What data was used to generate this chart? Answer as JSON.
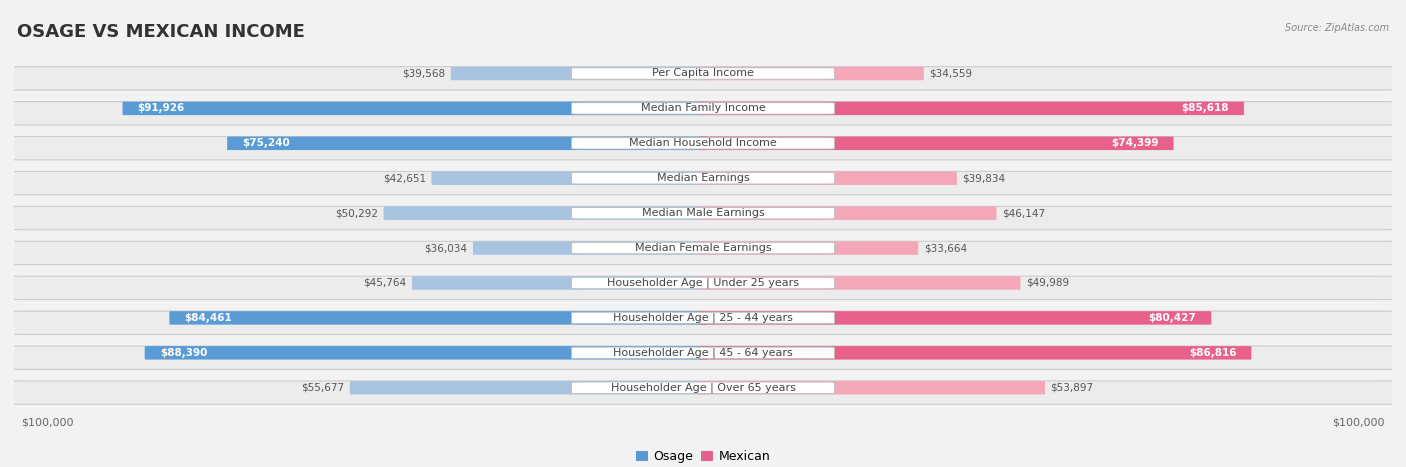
{
  "title": "OSAGE VS MEXICAN INCOME",
  "source": "Source: ZipAtlas.com",
  "categories": [
    "Per Capita Income",
    "Median Family Income",
    "Median Household Income",
    "Median Earnings",
    "Median Male Earnings",
    "Median Female Earnings",
    "Householder Age | Under 25 years",
    "Householder Age | 25 - 44 years",
    "Householder Age | 45 - 64 years",
    "Householder Age | Over 65 years"
  ],
  "osage_values": [
    39568,
    91926,
    75240,
    42651,
    50292,
    36034,
    45764,
    84461,
    88390,
    55677
  ],
  "mexican_values": [
    34559,
    85618,
    74399,
    39834,
    46147,
    33664,
    49989,
    80427,
    86816,
    53897
  ],
  "max_value": 100000,
  "osage_color_light": "#a8c4e0",
  "osage_color_dark": "#5b9bd5",
  "mexican_color_light": "#f4a7b9",
  "mexican_color_dark": "#e8618c",
  "bg_color": "#f2f2f2",
  "row_color": "#e8e8e8",
  "row_border": "#d0d0d0",
  "dark_threshold": 70000,
  "title_fontsize": 13,
  "label_fontsize": 8,
  "value_fontsize": 7.5,
  "axis_label_fontsize": 8
}
